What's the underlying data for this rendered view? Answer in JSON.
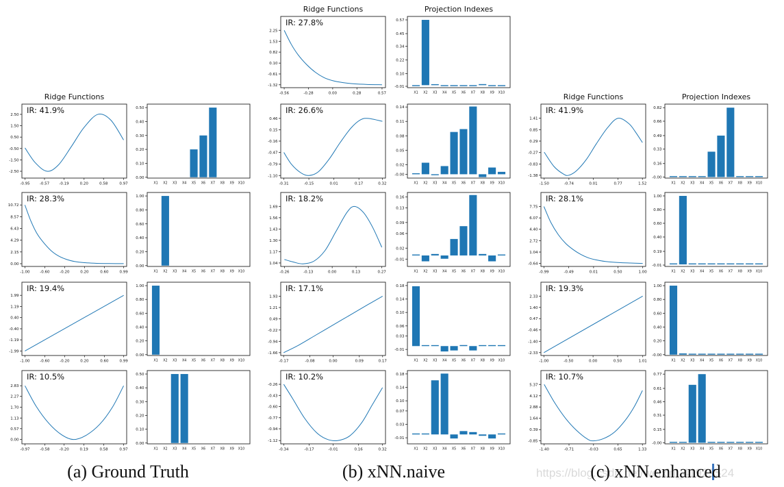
{
  "figure": {
    "captions": [
      {
        "label": "(a) Ground Truth"
      },
      {
        "label": "(b) xNN.naive"
      },
      {
        "label": "(c) xNN.enhanced"
      }
    ],
    "watermark": "https://blog.csdn.net/weixin_41929524"
  },
  "accent_color": "#1f77b4",
  "bar_categories": [
    "X1",
    "X2",
    "X3",
    "X4",
    "X5",
    "X6",
    "X7",
    "X8",
    "X9",
    "X10"
  ],
  "chart_data": [
    {
      "group": 0,
      "row": 1,
      "slot": "ridge",
      "type": "line",
      "title": "Ridge Functions",
      "ir": "IR: 41.9%",
      "yticks": [
        "2.50",
        "1.50",
        "0.50",
        "-0.50",
        "-1.50",
        "-2.50"
      ],
      "xticks": [
        "-0.95",
        "-0.57",
        "-0.19",
        "0.20",
        "0.58",
        "0.97"
      ],
      "xlim": [
        -1.01,
        1.03
      ],
      "ylim": [
        -3.1,
        3.4
      ],
      "points": [
        [
          -0.95,
          -0.45
        ],
        [
          -0.75,
          -1.75
        ],
        [
          -0.52,
          -2.5
        ],
        [
          -0.3,
          -1.95
        ],
        [
          -0.05,
          -0.35
        ],
        [
          0.2,
          1.35
        ],
        [
          0.47,
          2.5
        ],
        [
          0.72,
          2.0
        ],
        [
          0.97,
          0.25
        ]
      ]
    },
    {
      "group": 0,
      "row": 1,
      "slot": "proj",
      "type": "bar",
      "yticks": [
        "0.50",
        "0.40",
        "0.30",
        "0.20",
        "0.10",
        "0.00"
      ],
      "ylim": [
        -0.006,
        0.525
      ],
      "values": [
        0,
        0,
        0,
        0,
        0.2,
        0.3,
        0.5,
        0,
        0,
        0
      ]
    },
    {
      "group": 0,
      "row": 2,
      "slot": "ridge",
      "type": "line",
      "ir": "IR: 28.3%",
      "yticks": [
        "10.72",
        "8.57",
        "6.43",
        "4.29",
        "2.15",
        "0.00"
      ],
      "xticks": [
        "-1.00",
        "-0.60",
        "-0.20",
        "0.20",
        "0.60",
        "0.99"
      ],
      "xlim": [
        -1.06,
        1.05
      ],
      "ylim": [
        -0.5,
        13.0
      ],
      "points": [
        [
          -1.0,
          10.72
        ],
        [
          -0.88,
          7.8
        ],
        [
          -0.75,
          5.4
        ],
        [
          -0.6,
          3.6
        ],
        [
          -0.45,
          2.2
        ],
        [
          -0.3,
          1.3
        ],
        [
          -0.15,
          0.75
        ],
        [
          0.0,
          0.4
        ],
        [
          0.2,
          0.18
        ],
        [
          0.45,
          0.07
        ],
        [
          0.7,
          0.03
        ],
        [
          0.99,
          0.02
        ]
      ]
    },
    {
      "group": 0,
      "row": 2,
      "slot": "proj",
      "type": "bar",
      "yticks": [
        "1.00",
        "0.80",
        "0.60",
        "0.40",
        "0.20",
        "0.00"
      ],
      "ylim": [
        -0.012,
        1.05
      ],
      "values": [
        0,
        1.0,
        0,
        0,
        0,
        0,
        0,
        0,
        0,
        0
      ]
    },
    {
      "group": 0,
      "row": 3,
      "slot": "ridge",
      "type": "line",
      "ir": "IR: 19.4%",
      "yticks": [
        "1.99",
        "1.19",
        "0.40",
        "-0.40",
        "-1.19",
        "-1.99"
      ],
      "xticks": [
        "-1.00",
        "-0.60",
        "-0.20",
        "0.20",
        "0.60",
        "0.99"
      ],
      "xlim": [
        -1.06,
        1.05
      ],
      "ylim": [
        -2.31,
        2.93
      ],
      "points": [
        [
          -1.0,
          -1.99
        ],
        [
          0.99,
          1.99
        ]
      ]
    },
    {
      "group": 0,
      "row": 3,
      "slot": "proj",
      "type": "bar",
      "yticks": [
        "1.00",
        "0.80",
        "0.60",
        "0.40",
        "0.20",
        "0.00"
      ],
      "ylim": [
        -0.012,
        1.05
      ],
      "values": [
        1.0,
        0,
        0,
        0,
        0,
        0,
        0,
        0,
        0,
        0
      ]
    },
    {
      "group": 0,
      "row": 4,
      "slot": "ridge",
      "type": "line",
      "ir": "IR: 10.5%",
      "yticks": [
        "2.83",
        "2.27",
        "1.70",
        "1.13",
        "0.57",
        "0.00"
      ],
      "xticks": [
        "-0.97",
        "-0.58",
        "-0.20",
        "0.19",
        "0.58",
        "0.97"
      ],
      "xlim": [
        -1.03,
        1.03
      ],
      "ylim": [
        -0.23,
        3.63
      ],
      "points": [
        [
          -0.97,
          2.83
        ],
        [
          -0.75,
          1.75
        ],
        [
          -0.5,
          0.85
        ],
        [
          -0.25,
          0.25
        ],
        [
          -0.02,
          0.0
        ],
        [
          0.22,
          0.2
        ],
        [
          0.5,
          0.8
        ],
        [
          0.75,
          1.7
        ],
        [
          0.97,
          2.83
        ]
      ]
    },
    {
      "group": 0,
      "row": 4,
      "slot": "proj",
      "type": "bar",
      "yticks": [
        "0.50",
        "0.40",
        "0.30",
        "0.20",
        "0.10",
        "0.00"
      ],
      "ylim": [
        -0.006,
        0.525
      ],
      "values": [
        0,
        0,
        0.5,
        0.5,
        0,
        0,
        0,
        0,
        0,
        0
      ]
    },
    {
      "group": 1,
      "row": 0,
      "slot": "ridge",
      "type": "line",
      "title": "Ridge Functions",
      "ir": "IR: 27.8%",
      "yticks": [
        "2.25",
        "1.53",
        "0.82",
        "0.10",
        "-0.61",
        "-1.32"
      ],
      "xticks": [
        "-0.56",
        "-0.28",
        "0.00",
        "0.28",
        "0.57"
      ],
      "xlim": [
        -0.6,
        0.61
      ],
      "ylim": [
        -1.51,
        3.16
      ],
      "points": [
        [
          -0.56,
          2.25
        ],
        [
          -0.48,
          1.35
        ],
        [
          -0.4,
          0.65
        ],
        [
          -0.3,
          0.0
        ],
        [
          -0.2,
          -0.5
        ],
        [
          -0.1,
          -0.85
        ],
        [
          0.0,
          -1.05
        ],
        [
          0.12,
          -1.18
        ],
        [
          0.25,
          -1.26
        ],
        [
          0.4,
          -1.3
        ],
        [
          0.57,
          -1.32
        ]
      ]
    },
    {
      "group": 1,
      "row": 0,
      "slot": "proj",
      "type": "bar",
      "title": "Projection Indexes",
      "yticks": [
        "0.57",
        "0.45",
        "0.34",
        "0.22",
        "0.10",
        "-0.01"
      ],
      "ylim": [
        -0.022,
        0.6
      ],
      "values": [
        -0.008,
        0.57,
        0.008,
        -0.005,
        -0.006,
        -0.006,
        -0.007,
        0.009,
        -0.004,
        -0.004
      ]
    },
    {
      "group": 1,
      "row": 1,
      "slot": "ridge",
      "type": "line",
      "ir": "IR: 26.6%",
      "yticks": [
        "0.46",
        "0.15",
        "-0.16",
        "-0.47",
        "-0.79",
        "-1.10"
      ],
      "xticks": [
        "-0.31",
        "-0.15",
        "0.01",
        "0.17",
        "0.32"
      ],
      "xlim": [
        -0.33,
        0.34
      ],
      "ylim": [
        -1.17,
        0.85
      ],
      "points": [
        [
          -0.31,
          -0.47
        ],
        [
          -0.26,
          -0.8
        ],
        [
          -0.2,
          -1.03
        ],
        [
          -0.15,
          -1.1
        ],
        [
          -0.09,
          -1.0
        ],
        [
          -0.02,
          -0.65
        ],
        [
          0.05,
          -0.2
        ],
        [
          0.12,
          0.2
        ],
        [
          0.18,
          0.42
        ],
        [
          0.23,
          0.46
        ],
        [
          0.32,
          0.38
        ]
      ]
    },
    {
      "group": 1,
      "row": 1,
      "slot": "proj",
      "type": "bar",
      "yticks": [
        "0.14",
        "0.11",
        "0.08",
        "0.05",
        "0.02",
        "-0.00"
      ],
      "ylim": [
        -0.008,
        0.146
      ],
      "values": [
        0.002,
        0.024,
        -0.001,
        0.017,
        0.088,
        0.094,
        0.141,
        -0.006,
        0.014,
        0.005
      ]
    },
    {
      "group": 1,
      "row": 2,
      "slot": "ridge",
      "type": "line",
      "ir": "IR: 18.2%",
      "yticks": [
        "1.69",
        "1.56",
        "1.43",
        "1.30",
        "1.17",
        "1.04"
      ],
      "xticks": [
        "-0.26",
        "-0.13",
        "0.00",
        "0.13",
        "0.27"
      ],
      "xlim": [
        -0.28,
        0.29
      ],
      "ylim": [
        1.0,
        1.85
      ],
      "points": [
        [
          -0.26,
          1.08
        ],
        [
          -0.21,
          1.05
        ],
        [
          -0.16,
          1.03
        ],
        [
          -0.1,
          1.06
        ],
        [
          -0.04,
          1.18
        ],
        [
          0.02,
          1.4
        ],
        [
          0.08,
          1.62
        ],
        [
          0.12,
          1.69
        ],
        [
          0.17,
          1.62
        ],
        [
          0.22,
          1.45
        ],
        [
          0.27,
          1.22
        ]
      ]
    },
    {
      "group": 1,
      "row": 2,
      "slot": "proj",
      "type": "bar",
      "yticks": [
        "0.16",
        "0.13",
        "0.09",
        "0.06",
        "0.02",
        "-0.01"
      ],
      "ylim": [
        -0.03,
        0.172
      ],
      "values": [
        0.001,
        -0.016,
        0.004,
        -0.009,
        0.045,
        0.08,
        0.165,
        0.004,
        -0.016,
        0.002
      ]
    },
    {
      "group": 1,
      "row": 3,
      "slot": "ridge",
      "type": "line",
      "ir": "IR: 17.1%",
      "yticks": [
        "1.93",
        "1.21",
        "0.49",
        "-0.22",
        "-0.94",
        "-1.66"
      ],
      "xticks": [
        "-0.17",
        "-0.08",
        "0.00",
        "0.09",
        "0.17"
      ],
      "xlim": [
        -0.18,
        0.18
      ],
      "ylim": [
        -1.84,
        2.82
      ],
      "points": [
        [
          -0.17,
          -1.66
        ],
        [
          -0.12,
          -1.2
        ],
        [
          -0.06,
          -0.55
        ],
        [
          0.0,
          0.1
        ],
        [
          0.06,
          0.75
        ],
        [
          0.12,
          1.4
        ],
        [
          0.17,
          1.93
        ]
      ]
    },
    {
      "group": 1,
      "row": 3,
      "slot": "proj",
      "type": "bar",
      "yticks": [
        "0.18",
        "0.14",
        "0.10",
        "0.06",
        "0.03",
        "-0.01"
      ],
      "ylim": [
        -0.028,
        0.19
      ],
      "values": [
        0.178,
        0.001,
        0.001,
        -0.016,
        -0.013,
        0.003,
        -0.013,
        0.001,
        0.001,
        0.001
      ]
    },
    {
      "group": 1,
      "row": 4,
      "slot": "ridge",
      "type": "line",
      "ir": "IR: 10.2%",
      "yticks": [
        "-0.26",
        "-0.43",
        "-0.60",
        "-0.77",
        "-0.94",
        "-1.12"
      ],
      "xticks": [
        "-0.34",
        "-0.17",
        "-0.01",
        "0.16",
        "0.32"
      ],
      "xlim": [
        -0.36,
        0.34
      ],
      "ylim": [
        -1.17,
        -0.05
      ],
      "points": [
        [
          -0.34,
          -0.26
        ],
        [
          -0.28,
          -0.48
        ],
        [
          -0.2,
          -0.78
        ],
        [
          -0.12,
          -1.0
        ],
        [
          -0.05,
          -1.1
        ],
        [
          0.02,
          -1.12
        ],
        [
          0.1,
          -1.05
        ],
        [
          0.18,
          -0.85
        ],
        [
          0.25,
          -0.58
        ],
        [
          0.32,
          -0.31
        ]
      ]
    },
    {
      "group": 1,
      "row": 4,
      "slot": "proj",
      "type": "bar",
      "yticks": [
        "0.18",
        "0.14",
        "0.10",
        "0.07",
        "0.03",
        "-0.01"
      ],
      "ylim": [
        -0.028,
        0.19
      ],
      "values": [
        0.001,
        0.001,
        0.161,
        0.181,
        -0.012,
        0.01,
        0.007,
        -0.004,
        -0.012,
        0.001
      ]
    },
    {
      "group": 2,
      "row": 1,
      "slot": "ridge",
      "type": "line",
      "title": "Ridge Functions",
      "ir": "IR: 41.9%",
      "yticks": [
        "1.41",
        "0.85",
        "0.29",
        "-0.27",
        "-0.83",
        "-1.38"
      ],
      "xticks": [
        "-1.50",
        "-0.74",
        "0.01",
        "0.77",
        "1.52"
      ],
      "xlim": [
        -1.6,
        1.62
      ],
      "ylim": [
        -1.52,
        2.1
      ],
      "points": [
        [
          -1.5,
          -0.25
        ],
        [
          -1.2,
          -0.95
        ],
        [
          -0.9,
          -1.33
        ],
        [
          -0.74,
          -1.38
        ],
        [
          -0.5,
          -1.15
        ],
        [
          -0.2,
          -0.6
        ],
        [
          0.1,
          0.15
        ],
        [
          0.45,
          0.95
        ],
        [
          0.77,
          1.41
        ],
        [
          1.1,
          1.15
        ],
        [
          1.3,
          0.75
        ],
        [
          1.52,
          0.22
        ]
      ]
    },
    {
      "group": 2,
      "row": 1,
      "slot": "proj",
      "type": "bar",
      "title": "Projection Indexes",
      "yticks": [
        "0.82",
        "0.66",
        "0.49",
        "0.33",
        "0.16",
        "-0.00"
      ],
      "ylim": [
        -0.012,
        0.862
      ],
      "values": [
        0.004,
        0.004,
        0.004,
        0.004,
        0.3,
        0.49,
        0.82,
        0.004,
        0.004,
        0.004
      ]
    },
    {
      "group": 2,
      "row": 2,
      "slot": "ridge",
      "type": "line",
      "ir": "IR: 28.1%",
      "yticks": [
        "7.75",
        "6.07",
        "4.40",
        "2.72",
        "1.04",
        "-0.64"
      ],
      "xticks": [
        "-0.99",
        "-0.49",
        "0.01",
        "0.50",
        "1.00"
      ],
      "xlim": [
        -1.05,
        1.06
      ],
      "ylim": [
        -1.08,
        9.82
      ],
      "points": [
        [
          -0.99,
          7.75
        ],
        [
          -0.85,
          5.4
        ],
        [
          -0.7,
          3.6
        ],
        [
          -0.55,
          2.3
        ],
        [
          -0.4,
          1.4
        ],
        [
          -0.25,
          0.7
        ],
        [
          -0.1,
          0.2
        ],
        [
          0.05,
          -0.1
        ],
        [
          0.25,
          -0.35
        ],
        [
          0.5,
          -0.5
        ],
        [
          0.75,
          -0.58
        ],
        [
          1.0,
          -0.64
        ]
      ]
    },
    {
      "group": 2,
      "row": 2,
      "slot": "proj",
      "type": "bar",
      "yticks": [
        "1.00",
        "0.80",
        "0.60",
        "0.40",
        "0.19",
        "-0.01"
      ],
      "ylim": [
        -0.03,
        1.05
      ],
      "values": [
        0.012,
        1.0,
        0.005,
        0.005,
        0.005,
        0.005,
        0.005,
        0.005,
        0.005,
        0.005
      ]
    },
    {
      "group": 2,
      "row": 3,
      "slot": "ridge",
      "type": "line",
      "ir": "IR: 19.3%",
      "yticks": [
        "2.33",
        "1.40",
        "0.47",
        "-0.46",
        "-1.40",
        "-2.33"
      ],
      "xticks": [
        "-1.00",
        "-0.50",
        "0.00",
        "0.50",
        "1.01"
      ],
      "xlim": [
        -1.06,
        1.07
      ],
      "ylim": [
        -2.57,
        3.48
      ],
      "points": [
        [
          -1.0,
          -2.33
        ],
        [
          1.01,
          2.33
        ]
      ]
    },
    {
      "group": 2,
      "row": 3,
      "slot": "proj",
      "type": "bar",
      "yticks": [
        "1.00",
        "0.80",
        "0.60",
        "0.40",
        "0.20",
        "-0.00"
      ],
      "ylim": [
        -0.012,
        1.05
      ],
      "values": [
        1.0,
        0.018,
        0.005,
        0.005,
        0.005,
        0.005,
        0.005,
        0.005,
        0.005,
        0.005
      ]
    },
    {
      "group": 2,
      "row": 4,
      "slot": "ridge",
      "type": "line",
      "ir": "IR: 10.7%",
      "yticks": [
        "5.37",
        "4.12",
        "2.88",
        "1.64",
        "0.39",
        "-0.85"
      ],
      "xticks": [
        "-1.40",
        "-0.71",
        "-0.03",
        "0.65",
        "1.33"
      ],
      "xlim": [
        -1.49,
        1.42
      ],
      "ylim": [
        -1.18,
        6.9
      ],
      "points": [
        [
          -1.4,
          5.37
        ],
        [
          -1.1,
          3.3
        ],
        [
          -0.8,
          1.6
        ],
        [
          -0.5,
          0.3
        ],
        [
          -0.2,
          -0.65
        ],
        [
          -0.03,
          -0.85
        ],
        [
          0.25,
          -0.6
        ],
        [
          0.55,
          0.1
        ],
        [
          0.85,
          1.4
        ],
        [
          1.1,
          2.9
        ],
        [
          1.33,
          4.7
        ]
      ]
    },
    {
      "group": 2,
      "row": 4,
      "slot": "proj",
      "type": "bar",
      "yticks": [
        "0.77",
        "0.61",
        "0.46",
        "0.31",
        "0.15",
        "-0.00"
      ],
      "ylim": [
        -0.012,
        0.81
      ],
      "values": [
        0.004,
        0.004,
        0.65,
        0.77,
        0.004,
        0.004,
        0.004,
        0.004,
        0.004,
        0.004
      ]
    }
  ]
}
